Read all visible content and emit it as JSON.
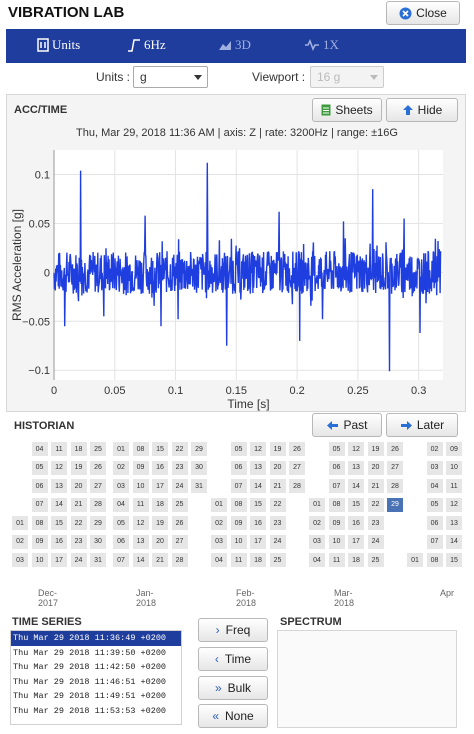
{
  "app": {
    "title": "VIBRATION LAB",
    "close_label": "Close"
  },
  "toolbar": [
    {
      "label": "Units",
      "icon": "units-icon",
      "active": true
    },
    {
      "label": "6Hz",
      "icon": "filter-icon",
      "active": true
    },
    {
      "label": "3D",
      "icon": "3d-chart-icon",
      "active": false
    },
    {
      "label": "1X",
      "icon": "signal-icon",
      "active": false
    }
  ],
  "controls": {
    "units_label": "Units :",
    "units_value": "g",
    "viewport_label": "Viewport :",
    "viewport_value": "16 g"
  },
  "acc_panel": {
    "title": "ACC/TIME",
    "sheets_label": "Sheets",
    "hide_label": "Hide",
    "info": "Thu, Mar 29, 2018 11:36 AM | axis: Z | rate: 3200Hz | range: ±16G"
  },
  "chart_data": {
    "type": "line",
    "xlabel": "Time [s]",
    "ylabel": "RMS Acceleration [g]",
    "xlim": [
      0,
      0.32
    ],
    "ylim": [
      -0.11,
      0.125
    ],
    "xticks": [
      "0",
      "0.05",
      "0.1",
      "0.15",
      "0.2",
      "0.25",
      "0.3"
    ],
    "xtick_values": [
      0,
      0.05,
      0.1,
      0.15,
      0.2,
      0.25,
      0.3
    ],
    "yticks": [
      "0.1",
      "0.05",
      "0",
      "−0.05",
      "−0.1"
    ],
    "ytick_values": [
      0.1,
      0.05,
      0,
      -0.05,
      -0.1
    ],
    "color": "#1f3ee0",
    "noise_amplitude": 0.022,
    "spikes": [
      {
        "x": 0.022,
        "y": 0.104
      },
      {
        "x": 0.009,
        "y": -0.055
      },
      {
        "x": 0.041,
        "y": -0.045
      },
      {
        "x": 0.075,
        "y": 0.058
      },
      {
        "x": 0.088,
        "y": -0.055
      },
      {
        "x": 0.102,
        "y": -0.048
      },
      {
        "x": 0.126,
        "y": 0.112
      },
      {
        "x": 0.142,
        "y": -0.075
      },
      {
        "x": 0.185,
        "y": 0.062
      },
      {
        "x": 0.202,
        "y": -0.07
      },
      {
        "x": 0.221,
        "y": -0.048
      },
      {
        "x": 0.238,
        "y": 0.052
      },
      {
        "x": 0.262,
        "y": 0.085
      },
      {
        "x": 0.276,
        "y": -0.101
      },
      {
        "x": 0.288,
        "y": 0.055
      },
      {
        "x": 0.301,
        "y": -0.062
      },
      {
        "x": 0.316,
        "y": 0.032
      }
    ]
  },
  "historian": {
    "title": "HISTORIAN",
    "past_label": "Past",
    "later_label": "Later",
    "selected": "29",
    "months": [
      "Dec-2017",
      "Jan-2018",
      "Feb-2018",
      "Mar-2018",
      "Apr"
    ],
    "blocks": [
      {
        "rows": [
          [
            "",
            "04",
            "11",
            "18",
            "25"
          ],
          [
            "",
            "05",
            "12",
            "19",
            "26"
          ],
          [
            "",
            "06",
            "13",
            "20",
            "27"
          ],
          [
            "",
            "07",
            "14",
            "21",
            "28"
          ],
          [
            "01",
            "08",
            "15",
            "22",
            "29"
          ],
          [
            "02",
            "09",
            "16",
            "23",
            "30"
          ],
          [
            "03",
            "10",
            "17",
            "24",
            "31"
          ]
        ]
      },
      {
        "rows": [
          [
            "01",
            "08",
            "15",
            "22",
            "29"
          ],
          [
            "02",
            "09",
            "16",
            "23",
            "30"
          ],
          [
            "03",
            "10",
            "17",
            "24",
            "31"
          ],
          [
            "04",
            "11",
            "18",
            "25",
            ""
          ],
          [
            "05",
            "12",
            "19",
            "26",
            ""
          ],
          [
            "06",
            "13",
            "20",
            "27",
            ""
          ],
          [
            "07",
            "14",
            "21",
            "28",
            ""
          ]
        ]
      },
      {
        "rows": [
          [
            "",
            "05",
            "12",
            "19",
            "26"
          ],
          [
            "",
            "06",
            "13",
            "20",
            "27"
          ],
          [
            "",
            "07",
            "14",
            "21",
            "28"
          ],
          [
            "01",
            "08",
            "15",
            "22",
            ""
          ],
          [
            "02",
            "09",
            "16",
            "23",
            ""
          ],
          [
            "03",
            "10",
            "17",
            "24",
            ""
          ],
          [
            "04",
            "11",
            "18",
            "25",
            ""
          ]
        ]
      },
      {
        "rows": [
          [
            "",
            "05",
            "12",
            "19",
            "26"
          ],
          [
            "",
            "06",
            "13",
            "20",
            "27"
          ],
          [
            "",
            "07",
            "14",
            "21",
            "28"
          ],
          [
            "01",
            "08",
            "15",
            "22",
            "29"
          ],
          [
            "02",
            "09",
            "16",
            "23",
            ""
          ],
          [
            "03",
            "10",
            "17",
            "24",
            ""
          ],
          [
            "04",
            "11",
            "18",
            "25",
            ""
          ]
        ]
      },
      {
        "rows": [
          [
            "",
            "02",
            "09"
          ],
          [
            "",
            "03",
            "10"
          ],
          [
            "",
            "04",
            "11"
          ],
          [
            "",
            "05",
            "12"
          ],
          [
            "",
            "06",
            "13"
          ],
          [
            "",
            "07",
            "14"
          ],
          [
            "01",
            "08",
            "15"
          ]
        ]
      }
    ]
  },
  "time_series": {
    "title": "TIME SERIES",
    "items": [
      "Thu Mar 29 2018 11:36:49 +0200",
      "Thu Mar 29 2018 11:39:50 +0200",
      "Thu Mar 29 2018 11:42:50 +0200",
      "Thu Mar 29 2018 11:46:51 +0200",
      "Thu Mar 29 2018 11:49:51 +0200",
      "Thu Mar 29 2018 11:53:53 +0200"
    ],
    "selected_index": 0
  },
  "side_buttons": [
    "Freq",
    "Time",
    "Bulk",
    "None"
  ],
  "spectrum": {
    "title": "SPECTRUM"
  }
}
